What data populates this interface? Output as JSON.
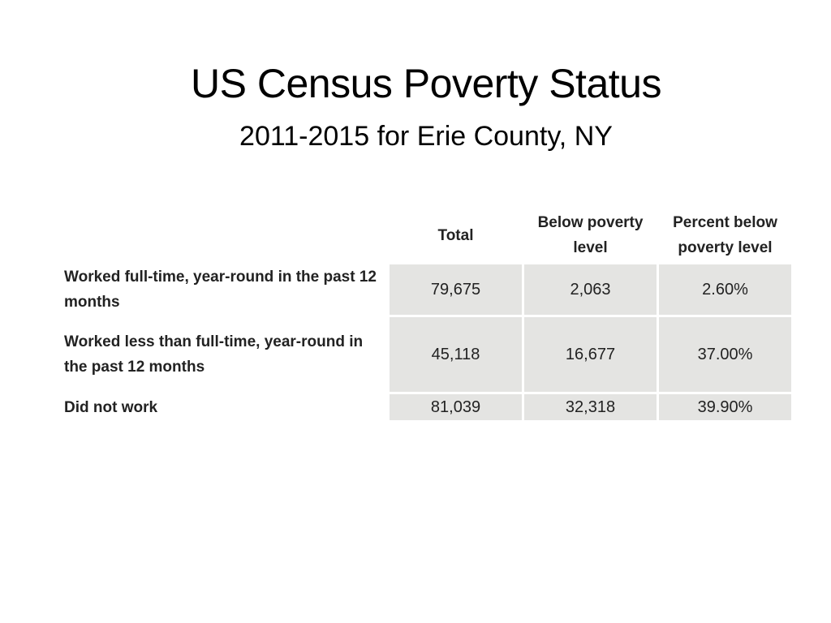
{
  "slide": {
    "title": "US Census Poverty Status",
    "subtitle": "2011-2015 for Erie County, NY"
  },
  "table": {
    "headers": {
      "total": "Total",
      "below": "Below poverty level",
      "percent": "Percent below poverty level"
    },
    "rows": [
      {
        "label": "Worked full-time, year-round in the past 12 months",
        "total": "79,675",
        "below": "2,063",
        "percent": "2.60%"
      },
      {
        "label": "Worked less than full-time, year-round in the past 12 months",
        "total": "45,118",
        "below": "16,677",
        "percent": "37.00%"
      },
      {
        "label": "Did not work",
        "total": "81,039",
        "below": "32,318",
        "percent": "39.90%"
      }
    ]
  },
  "colors": {
    "cell_background": "#e4e4e2",
    "text": "#222222"
  }
}
